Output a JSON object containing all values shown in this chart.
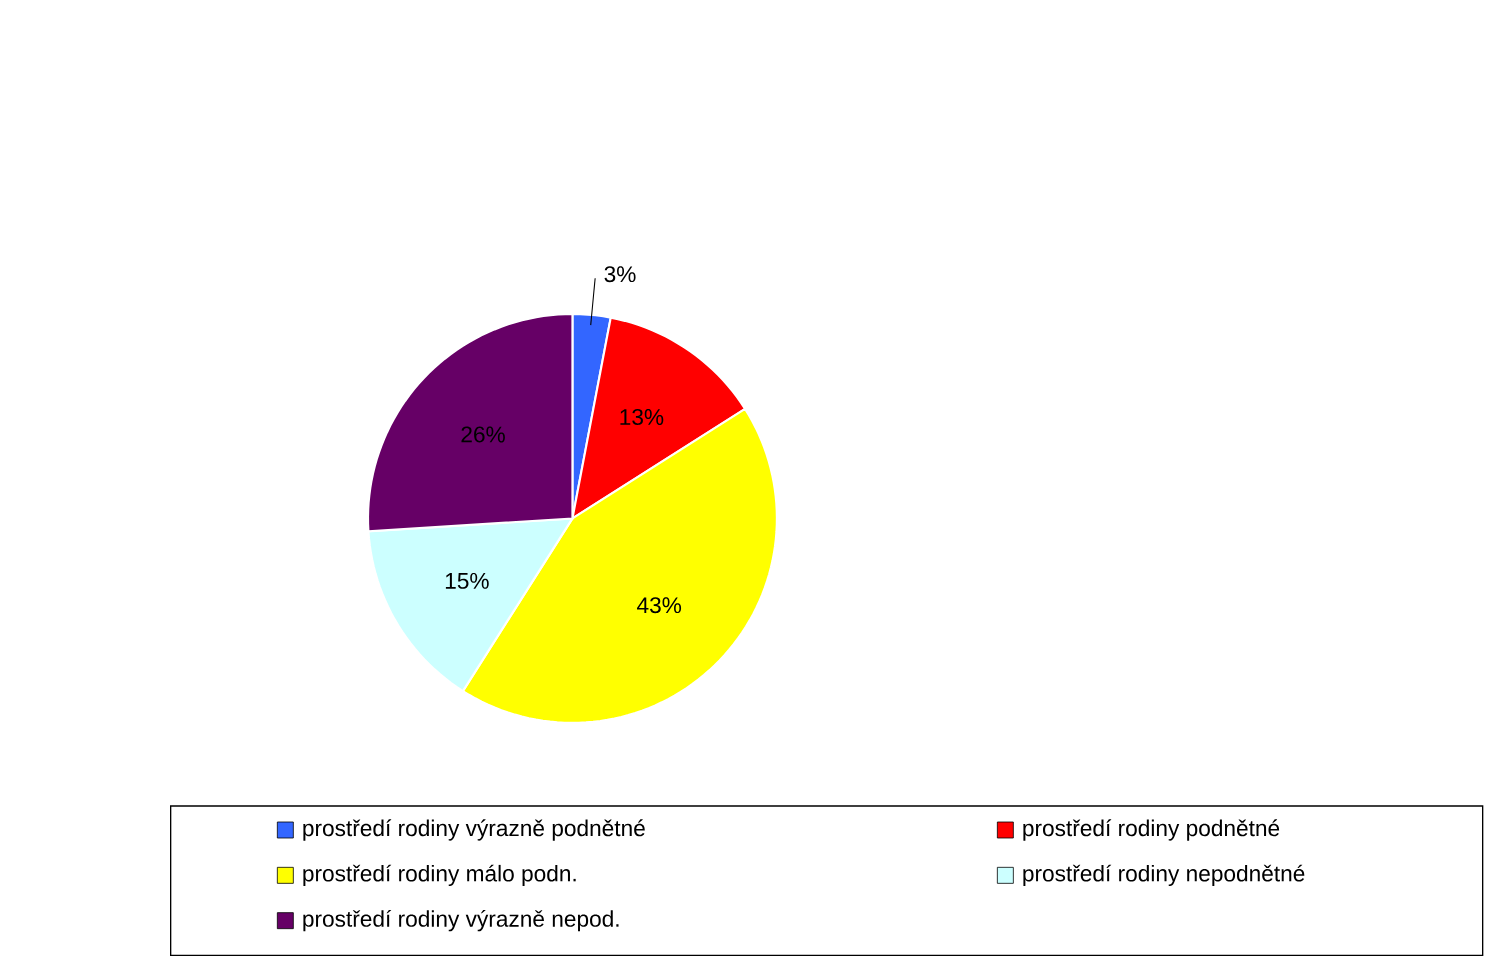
{
  "chart_data": {
    "type": "pie",
    "categories": [
      "prostředí rodiny výrazně podnětné",
      "prostředí rodiny podnětné",
      "prostředí rodiny málo podn.",
      "prostředí rodiny nepodnětné",
      "prostředí rodiny výrazně nepod."
    ],
    "values": [
      3,
      13,
      43,
      15,
      26
    ],
    "value_labels": [
      "3%",
      "13%",
      "43%",
      "15%",
      "26%"
    ],
    "colors": [
      "#3366ff",
      "#ff0000",
      "#ffff00",
      "#ccffff",
      "#660066"
    ],
    "legend": "bottom"
  }
}
